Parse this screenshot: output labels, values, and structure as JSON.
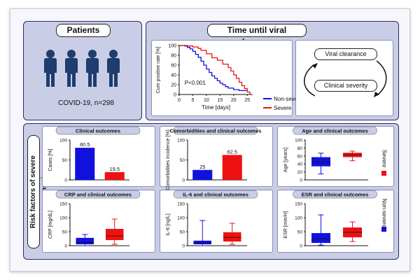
{
  "patients": {
    "title": "Patients",
    "caption": "COVID-19, n=298"
  },
  "viral": {
    "title": "Time until viral clearance",
    "xlabel": "Time [days]",
    "ylabel": "Cum positive rate [%]",
    "pvalue": "P<0.001",
    "xticks": [
      "0",
      "5",
      "10",
      "15",
      "20",
      "25"
    ],
    "yticks": [
      "0",
      "20",
      "40",
      "60",
      "80",
      "100"
    ],
    "legend": {
      "nonsevere": "Non-severe",
      "severe": "Severe"
    },
    "cycle": {
      "top": "Viral clearance",
      "bottom": "Clinical severity"
    }
  },
  "risk": {
    "side_title": "Risk factors of severe pneumonia",
    "legend": {
      "severe": "Severe",
      "nonsevere": "Non-severe"
    }
  },
  "colors": {
    "severe": "#ee1111",
    "nonsevere": "#1111dd",
    "panel": "#c9cde6",
    "border": "#2a2c66"
  },
  "chart_data": [
    {
      "type": "line",
      "title": "Time until viral clearance",
      "xlabel": "Time [days]",
      "ylabel": "Cum positive rate [%]",
      "xlim": [
        0,
        27
      ],
      "ylim": [
        0,
        100
      ],
      "annotation": "P<0.001",
      "series": [
        {
          "name": "Non-severe",
          "x": [
            0,
            2,
            3,
            4,
            5,
            6,
            7,
            8,
            9,
            10,
            11,
            12,
            13,
            14,
            15,
            16,
            17,
            18,
            20,
            22,
            25
          ],
          "y": [
            100,
            99,
            96,
            93,
            88,
            82,
            76,
            68,
            60,
            52,
            45,
            38,
            33,
            28,
            23,
            20,
            16,
            13,
            10,
            8,
            8
          ]
        },
        {
          "name": "Severe",
          "x": [
            0,
            3,
            5,
            7,
            8,
            10,
            12,
            14,
            16,
            18,
            19,
            20,
            21,
            22,
            23,
            24,
            25,
            26
          ],
          "y": [
            100,
            99,
            97,
            94,
            90,
            83,
            75,
            70,
            62,
            55,
            48,
            40,
            33,
            25,
            18,
            12,
            5,
            0
          ]
        }
      ]
    },
    {
      "type": "bar",
      "title": "Clinical outcomes",
      "ylabel": "Cases [%]",
      "ylim": [
        0,
        100
      ],
      "yticks": [
        "0",
        "50",
        "100"
      ],
      "categories": [
        "Non-severe",
        "Severe"
      ],
      "values": [
        80.5,
        19.5
      ],
      "data_labels": [
        "80.5",
        "19.5"
      ]
    },
    {
      "type": "bar",
      "title": "Comorbidities and clinical outcomes",
      "ylabel": "Comorbidities incidence [%]",
      "ylim": [
        0,
        100
      ],
      "yticks": [
        "0",
        "50",
        "100"
      ],
      "categories": [
        "Non-severe",
        "Severe"
      ],
      "values": [
        25,
        62.5
      ],
      "data_labels": [
        "25",
        "62.5"
      ]
    },
    {
      "type": "box",
      "title": "Age and clinical outcomes",
      "ylabel": "Age [years]",
      "ylim": [
        0,
        100
      ],
      "yticks": [
        "0",
        "20",
        "40",
        "60",
        "80",
        "100"
      ],
      "categories": [
        "Non-severe",
        "Severe"
      ],
      "boxes": [
        {
          "min": 15,
          "q1": 34,
          "median": 45,
          "q3": 57,
          "max": 67
        },
        {
          "min": 48,
          "q1": 57,
          "median": 63,
          "q3": 68,
          "max": 72
        }
      ]
    },
    {
      "type": "box",
      "title": "CRP and clinical outcomes",
      "ylabel": "CRP [mg/dL]",
      "ylim": [
        0,
        150
      ],
      "yticks": [
        "0",
        "50",
        "100",
        "150"
      ],
      "categories": [
        "Non-severe",
        "Severe"
      ],
      "boxes": [
        {
          "min": 0,
          "q1": 5,
          "median": 12,
          "q3": 28,
          "max": 40
        },
        {
          "min": 5,
          "q1": 20,
          "median": 35,
          "q3": 60,
          "max": 95
        }
      ]
    },
    {
      "type": "box",
      "title": "IL-6 and clinical outcomes",
      "ylabel": "IL-6 [ng/L]",
      "ylim": [
        0,
        150
      ],
      "yticks": [
        "0",
        "50",
        "100",
        "150"
      ],
      "categories": [
        "Non-severe",
        "Severe"
      ],
      "boxes": [
        {
          "min": 0,
          "q1": 5,
          "median": 10,
          "q3": 18,
          "max": 90
        },
        {
          "min": 5,
          "q1": 15,
          "median": 30,
          "q3": 48,
          "max": 80
        }
      ]
    },
    {
      "type": "box",
      "title": "ESR and clinical outcomes",
      "ylabel": "ESR [mm/H]",
      "ylim": [
        0,
        150
      ],
      "yticks": [
        "0",
        "50",
        "100",
        "150"
      ],
      "categories": [
        "Non-severe",
        "Severe"
      ],
      "boxes": [
        {
          "min": 2,
          "q1": 10,
          "median": 25,
          "q3": 45,
          "max": 110
        },
        {
          "min": 15,
          "q1": 30,
          "median": 48,
          "q3": 65,
          "max": 85
        }
      ]
    }
  ]
}
